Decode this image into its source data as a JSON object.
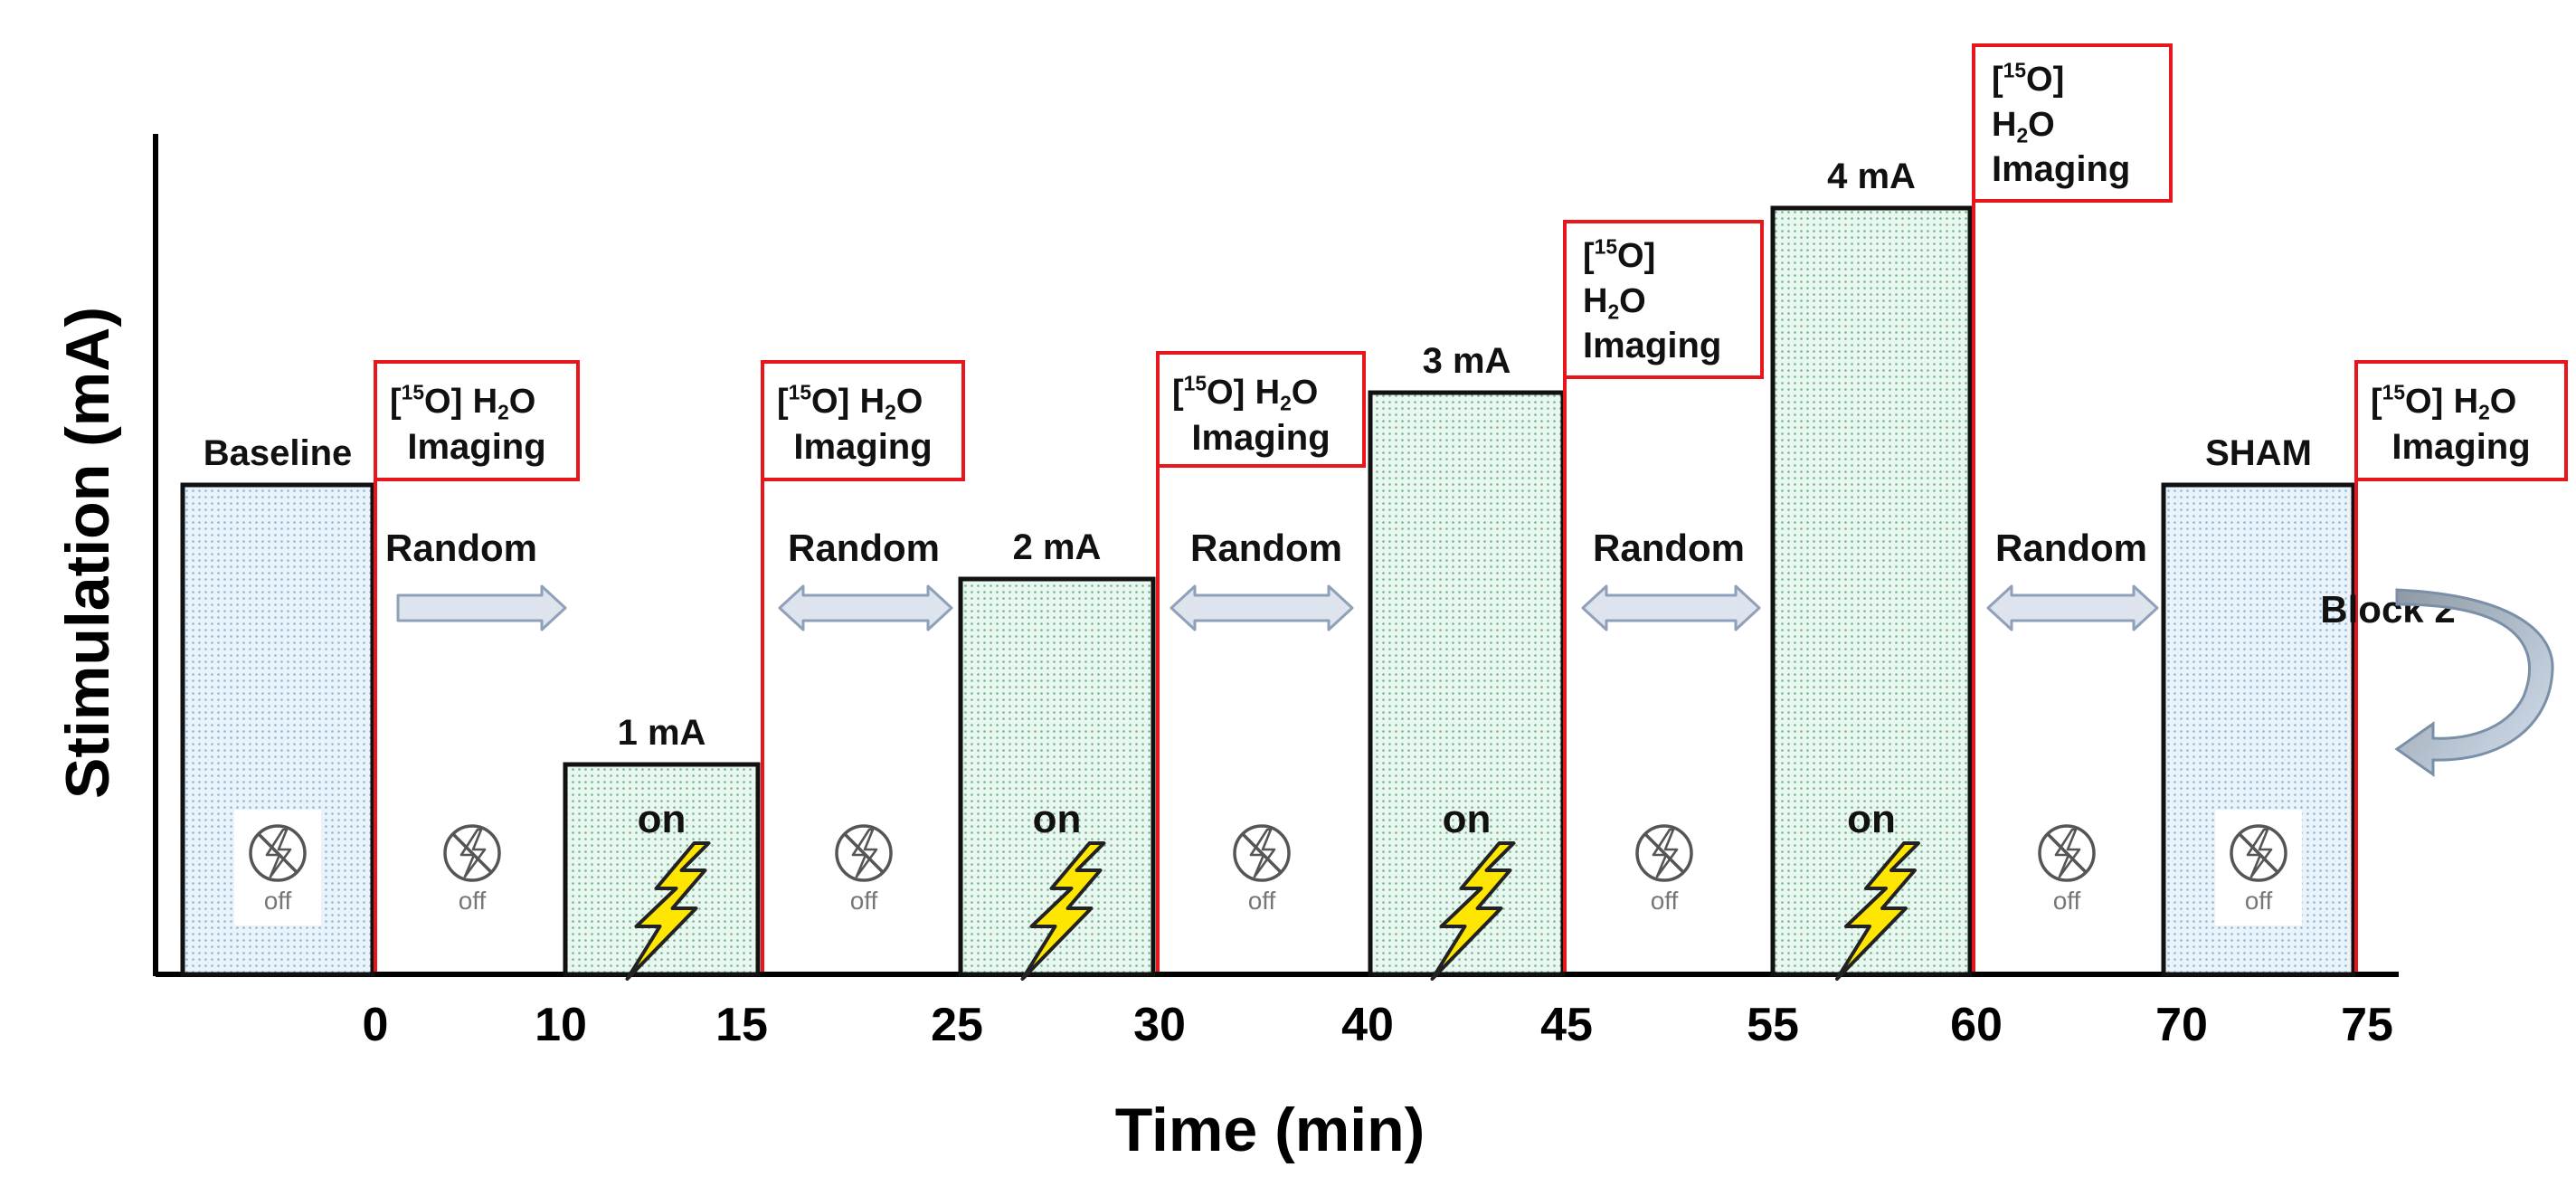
{
  "axes": {
    "y_label": "Stimulation (mA)",
    "x_label": "Time (min)",
    "ticks": [
      "0",
      "10",
      "15",
      "25",
      "30",
      "40",
      "45",
      "55",
      "60",
      "70",
      "75"
    ]
  },
  "blocks": [
    {
      "label": "Baseline",
      "state": "off",
      "kind": "baseline"
    },
    {
      "label": "1 mA",
      "state": "on",
      "kind": "stim"
    },
    {
      "label": "2 mA",
      "state": "on",
      "kind": "stim"
    },
    {
      "label": "3 mA",
      "state": "on",
      "kind": "stim"
    },
    {
      "label": "4 mA",
      "state": "on",
      "kind": "stim"
    },
    {
      "label": "SHAM",
      "state": "off",
      "kind": "sham"
    }
  ],
  "gaps": [
    {
      "state": "off",
      "random_label": "Random",
      "arrow": "right"
    },
    {
      "state": "off",
      "random_label": "Random",
      "arrow": "both"
    },
    {
      "state": "off",
      "random_label": "Random",
      "arrow": "both"
    },
    {
      "state": "off",
      "random_label": "Random",
      "arrow": "both"
    },
    {
      "state": "off",
      "random_label": "Random",
      "arrow": "both"
    }
  ],
  "imaging": {
    "bracket": "[",
    "isotope_mass": "15",
    "isotope": "O]",
    "water_h": "H",
    "water_sub": "2",
    "water_o": "O",
    "word": "Imaging"
  },
  "on_label": "on",
  "off_label": "off",
  "block2_label": "Block 2",
  "colors": {
    "imaging_border": "#e8161b",
    "stim_fill": "#e6f4ee",
    "off_fill": "#e6f2f8",
    "bolt": "#ffe600",
    "arrow_fill": "#dde4ee",
    "arrow_stroke": "#8fa1b8"
  }
}
